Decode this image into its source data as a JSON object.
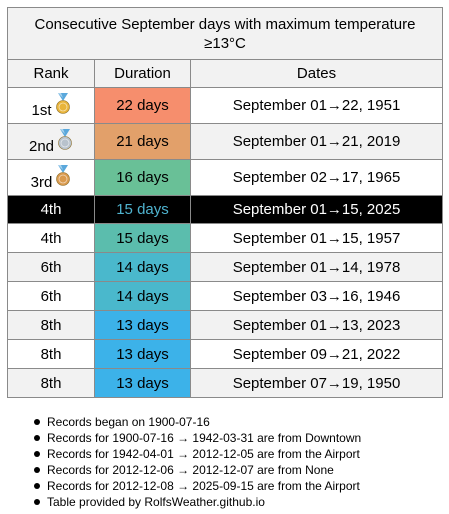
{
  "title": "Consecutive September days with maximum temperature ≥13°C",
  "headers": {
    "rank": "Rank",
    "duration": "Duration",
    "dates": "Dates"
  },
  "rows": [
    {
      "rank": "1st",
      "medal": "gold",
      "duration": "22 days",
      "dates": "September 01→22, 1951",
      "color": "#f68e6d",
      "current": false
    },
    {
      "rank": "2nd",
      "medal": "silver",
      "duration": "21 days",
      "dates": "September 01→21, 2019",
      "color": "#e2a06a",
      "current": false
    },
    {
      "rank": "3rd",
      "medal": "bronze",
      "duration": "16 days",
      "dates": "September 02→17, 1965",
      "color": "#69c097",
      "current": false
    },
    {
      "rank": "4th",
      "medal": "",
      "duration": "15 days",
      "dates": "September 01→15, 2025",
      "color": "#000000",
      "current": true
    },
    {
      "rank": "4th",
      "medal": "",
      "duration": "15 days",
      "dates": "September 01→15, 1957",
      "color": "#5bbdad",
      "current": false
    },
    {
      "rank": "6th",
      "medal": "",
      "duration": "14 days",
      "dates": "September 01→14, 1978",
      "color": "#4ab8cc",
      "current": false
    },
    {
      "rank": "6th",
      "medal": "",
      "duration": "14 days",
      "dates": "September 03→16, 1946",
      "color": "#4ab8cc",
      "current": false
    },
    {
      "rank": "8th",
      "medal": "",
      "duration": "13 days",
      "dates": "September 01→13, 2023",
      "color": "#3cb2e9",
      "current": false
    },
    {
      "rank": "8th",
      "medal": "",
      "duration": "13 days",
      "dates": "September 09→21, 2022",
      "color": "#3cb2e9",
      "current": false
    },
    {
      "rank": "8th",
      "medal": "",
      "duration": "13 days",
      "dates": "September 07→19, 1950",
      "color": "#3cb2e9",
      "current": false
    }
  ],
  "medal_colors": {
    "gold": "#e8b43a",
    "silver": "#b8c2cc",
    "bronze": "#d99a4e",
    "ribbon": "#5aa8dc"
  },
  "notes": [
    "Records began on 1900-07-16",
    "Records for 1900-07-16 → 1942-03-31 are from Downtown",
    "Records for 1942-04-01 → 2012-12-05 are from the Airport",
    "Records for 2012-12-06 → 2012-12-07 are from None",
    "Records for 2012-12-08 → 2025-09-15 are from the Airport",
    "Table provided by RolfsWeather.github.io"
  ]
}
